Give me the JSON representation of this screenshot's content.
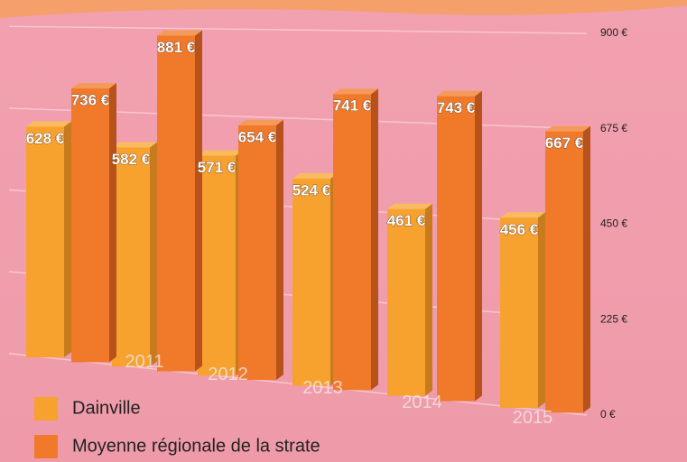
{
  "chart_data": {
    "type": "bar",
    "categories": [
      null,
      "2011",
      "2012",
      "2013",
      "2014",
      "2015"
    ],
    "series": [
      {
        "name": "Dainville",
        "color": "#f7a12e",
        "values": [
          628,
          582,
          571,
          524,
          461,
          456
        ],
        "value_labels": [
          "628 €",
          "582 €",
          "571 €",
          "524 €",
          "461 €",
          "456 €"
        ]
      },
      {
        "name": "Moyenne régionale de la strate",
        "color": "#f07a2a",
        "values": [
          736,
          881,
          654,
          741,
          743,
          667
        ],
        "value_labels": [
          "736 €",
          "881 €",
          "654 €",
          "741 €",
          "743 €",
          "667 €"
        ]
      }
    ],
    "ylim": [
      0,
      900
    ],
    "yticks": [
      {
        "value": 0,
        "label": "0 €"
      },
      {
        "value": 225,
        "label": "225 €"
      },
      {
        "value": 450,
        "label": "450 €"
      },
      {
        "value": 675,
        "label": "675 €"
      },
      {
        "value": 900,
        "label": "900 €"
      }
    ],
    "grid": true,
    "legend": "bottom-left"
  }
}
